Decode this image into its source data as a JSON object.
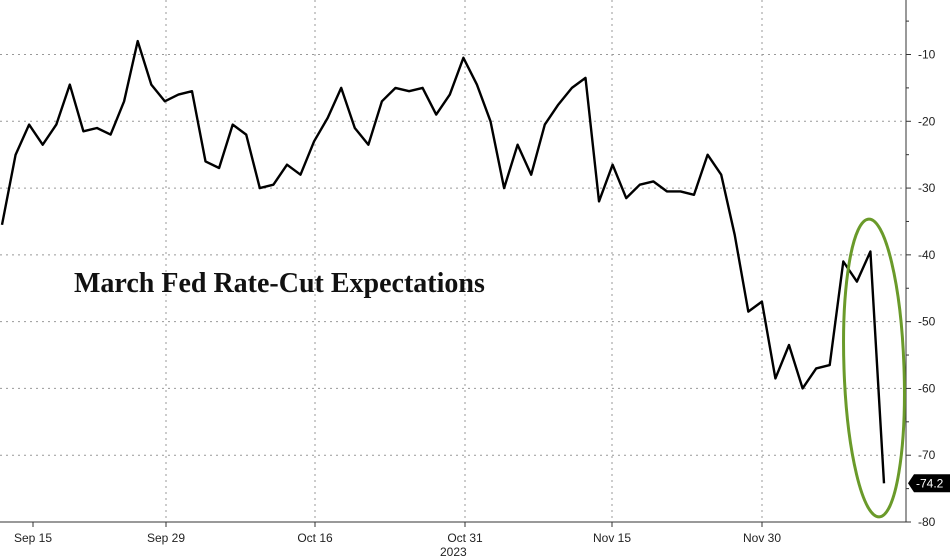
{
  "chart_data": {
    "type": "line",
    "title": "March Fed Rate-Cut Expectations",
    "year_label": "2023",
    "x_ticks": [
      "Sep 15",
      "Sep 29",
      "Oct 16",
      "Oct 31",
      "Nov 15",
      "Nov 30"
    ],
    "y_ticks": [
      -10,
      -20,
      -30,
      -40,
      -50,
      -60,
      -70,
      -80
    ],
    "ylim": [
      -80,
      0
    ],
    "grid": true,
    "last_value_label": "-74.2",
    "highlight": "green-ellipse-around-last-points",
    "colors": {
      "line": "#000000",
      "highlight": "#6a9a2a",
      "grid": "#999999"
    },
    "series": [
      {
        "values": [
          -35.5,
          -25,
          -20.5,
          -23.5,
          -20.5,
          -14.5,
          -21.5,
          -21,
          -22,
          -17,
          -8,
          -14.5,
          -17,
          -16,
          -15.5,
          -26,
          -27,
          -20.5,
          -22,
          -30,
          -29.5,
          -26.5,
          -28,
          -23,
          -19.5,
          -15,
          -21,
          -23.5,
          -17,
          -15,
          -15.5,
          -15,
          -19,
          -16,
          -10.5,
          -14.5,
          -20,
          -30,
          -23.5,
          -28,
          -20.5,
          -17.5,
          -15,
          -13.5,
          -32,
          -26.5,
          -31.5,
          -29.5,
          -29,
          -30.5,
          -30.5,
          -31,
          -25,
          -28,
          -37,
          -48.5,
          -47,
          -58.5,
          -53.5,
          -60,
          -57,
          -56.5,
          -41,
          -44,
          -39.5,
          -74.2
        ]
      }
    ]
  }
}
